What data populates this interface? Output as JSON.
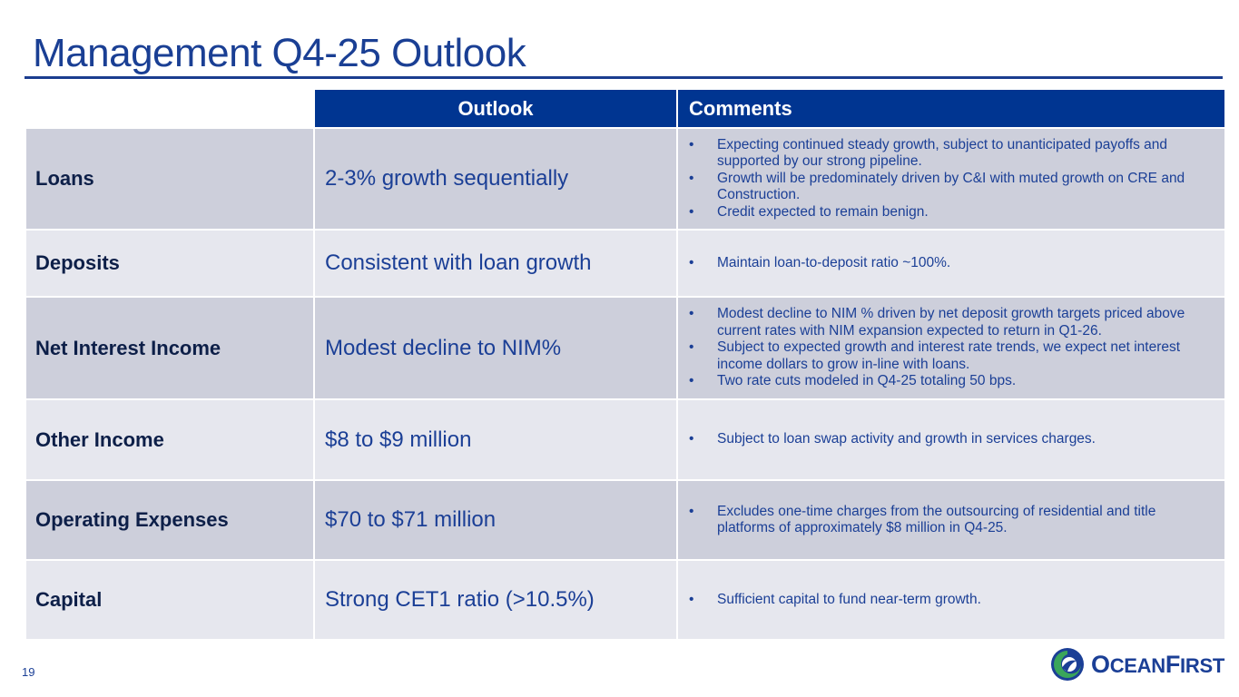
{
  "slide": {
    "title": "Management Q4-25 Outlook",
    "page_number": "19"
  },
  "table": {
    "headers": {
      "outlook": "Outlook",
      "comments": "Comments"
    },
    "rows": [
      {
        "label": "Loans",
        "outlook": "2-3% growth sequentially",
        "comments": [
          "Expecting continued steady growth, subject to unanticipated payoffs and supported by our strong pipeline.",
          "Growth will be predominately driven by C&I with muted growth on CRE and Construction.",
          "Credit expected to remain benign."
        ]
      },
      {
        "label": "Deposits",
        "outlook": "Consistent with loan growth",
        "comments": [
          "Maintain loan-to-deposit ratio ~100%."
        ]
      },
      {
        "label": "Net Interest Income",
        "outlook": "Modest decline to NIM%",
        "comments": [
          "Modest decline to NIM % driven by net deposit growth targets priced above current rates with NIM expansion expected to return in Q1-26.",
          "Subject to expected growth and interest rate trends, we expect net interest income dollars to grow in-line with loans.",
          "Two rate cuts modeled in Q4-25 totaling 50 bps."
        ]
      },
      {
        "label": "Other Income",
        "outlook": "$8 to $9 million",
        "comments": [
          "Subject to loan swap activity and growth in services charges."
        ]
      },
      {
        "label": "Operating Expenses",
        "outlook": "$70 to $71 million",
        "comments": [
          "Excludes one-time charges from the outsourcing of residential and title platforms of approximately $8 million in Q4-25."
        ]
      },
      {
        "label": "Capital",
        "outlook": "Strong CET1 ratio (>10.5%)",
        "comments": [
          "Sufficient capital to fund near-term growth."
        ]
      }
    ]
  },
  "logo": {
    "text_first_cap": "O",
    "text_first_rest": "CEAN",
    "text_second_cap": "F",
    "text_second_rest": "IRST",
    "icon": "oceanfirst-wave-logo",
    "colors": {
      "blue": "#1b3f96",
      "green": "#3aa55b"
    }
  },
  "colors": {
    "title": "#1a3f94",
    "header_bg": "#003591",
    "row_dark": "#cdcfdb",
    "row_light": "#e6e7ee",
    "text_blue": "#1b3f96"
  }
}
